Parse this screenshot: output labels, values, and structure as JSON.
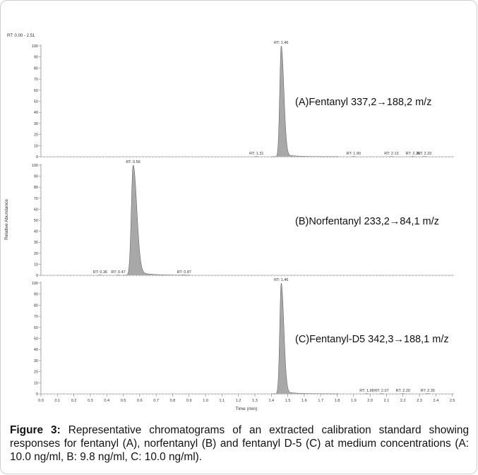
{
  "chart_data": {
    "type": "line",
    "range_label": "RT: 0.00 - 2.51",
    "xlabel": "Time (min)",
    "ylabel": "Relative Abundance",
    "xlim": [
      0.0,
      2.51
    ],
    "ylim": [
      0,
      100
    ],
    "x_ticks": [
      "0.0",
      "0.1",
      "0.2",
      "0.3",
      "0.4",
      "0.5",
      "0.6",
      "0.7",
      "0.8",
      "0.9",
      "1.0",
      "1.1",
      "1.2",
      "1.3",
      "1.4",
      "1.5",
      "1.6",
      "1.7",
      "1.8",
      "1.9",
      "2.0",
      "2.1",
      "2.2",
      "2.3",
      "2.4",
      "2.5"
    ],
    "y_ticks": [
      "0",
      "10",
      "20",
      "30",
      "40",
      "50",
      "60",
      "70",
      "80",
      "90",
      "100"
    ],
    "fill_color": "#a8a8a8",
    "line_color": "#555555",
    "panels": [
      {
        "id": "A",
        "label": "(A)Fentanyl 337,2→188,2 m/z",
        "peak": {
          "rt": 1.46,
          "height": 100,
          "sigma_left": 0.009,
          "sigma_right": 0.016,
          "tail_height": 2.5,
          "tail_decay": 0.07
        },
        "rt_labels": [
          {
            "text": "RT: 1.46",
            "x": 1.46,
            "y": 100
          },
          {
            "text": "RT: 1.31",
            "x": 1.31,
            "y": 0
          },
          {
            "text": "RT: 1.90",
            "x": 1.9,
            "y": 0
          },
          {
            "text": "RT: 2.13",
            "x": 2.13,
            "y": 0
          },
          {
            "text": "RT: 2.26",
            "x": 2.26,
            "y": 0
          },
          {
            "text": "RT: 2.33",
            "x": 2.33,
            "y": 0
          }
        ]
      },
      {
        "id": "B",
        "label": "(B)Norfentanyl 233,2→84,1 m/z",
        "peak": {
          "rt": 0.56,
          "height": 100,
          "sigma_left": 0.011,
          "sigma_right": 0.022,
          "tail_height": 4,
          "tail_decay": 0.08
        },
        "rt_labels": [
          {
            "text": "RT: 0.56",
            "x": 0.56,
            "y": 100
          },
          {
            "text": "RT: 0.36",
            "x": 0.36,
            "y": 0
          },
          {
            "text": "RT: 0.47",
            "x": 0.47,
            "y": 0
          },
          {
            "text": "RT: 0.87",
            "x": 0.87,
            "y": 0
          }
        ]
      },
      {
        "id": "C",
        "label": "(C)Fentanyl-D5 342,3→188,1 m/z",
        "peak": {
          "rt": 1.46,
          "height": 100,
          "sigma_left": 0.009,
          "sigma_right": 0.016,
          "tail_height": 2.5,
          "tail_decay": 0.07
        },
        "rt_labels": [
          {
            "text": "RT: 1.46",
            "x": 1.46,
            "y": 100
          },
          {
            "text": "RT: 1.98",
            "x": 1.98,
            "y": 0
          },
          {
            "text": "RT: 2.07",
            "x": 2.07,
            "y": 0
          },
          {
            "text": "RT: 2.20",
            "x": 2.2,
            "y": 0
          },
          {
            "text": "RT: 2.35",
            "x": 2.35,
            "y": 0
          }
        ]
      }
    ]
  },
  "caption": {
    "label": "Figure 3:",
    "text": " Representative chromatograms of an extracted calibration standard showing responses for fentanyl (A), norfentanyl (B) and fentanyl D-5 (C) at medium concentrations (A: 10.0 ng/ml, B: 9.8 ng/ml, C: 10.0 ng/ml)."
  }
}
